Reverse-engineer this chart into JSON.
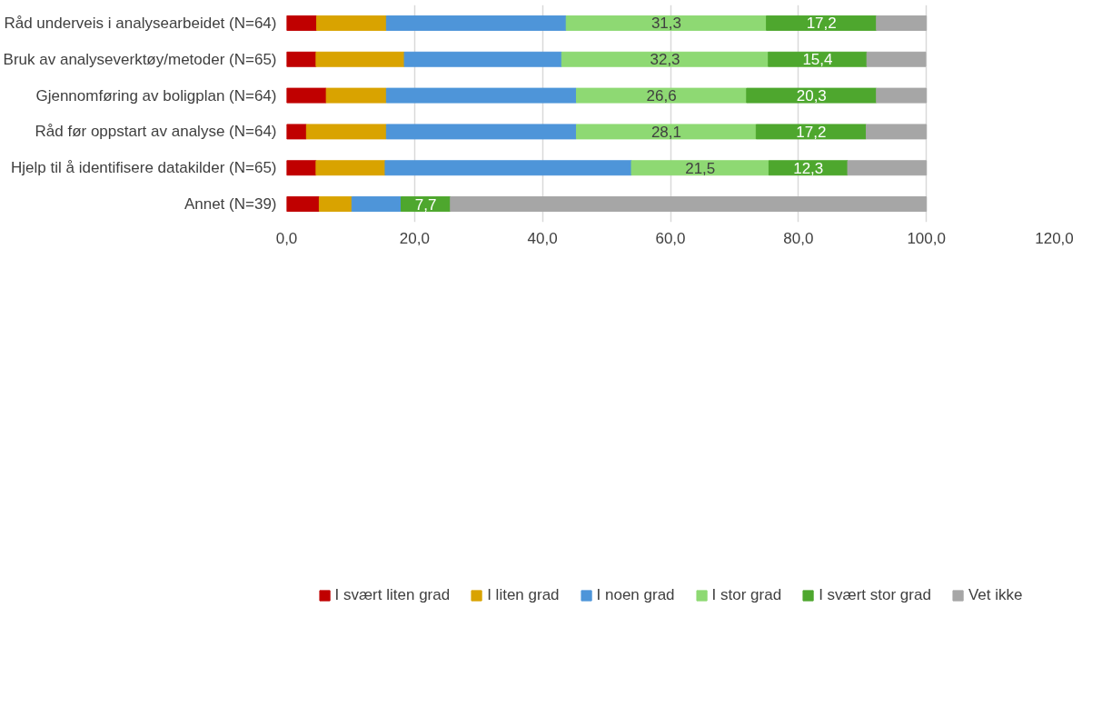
{
  "chart_data": {
    "type": "bar",
    "orientation": "horizontal",
    "stacked": true,
    "categories": [
      "Råd underveis i analysearbeidet (N=64)",
      "Bruk av analyseverktøy/metoder (N=65)",
      "Gjennomføring av boligplan (N=64)",
      "Råd før oppstart av analyse (N=64)",
      "Hjelp til å identifisere datakilder (N=65)",
      "Annet (N=39)"
    ],
    "series": [
      {
        "name": "I svært liten grad",
        "color": "#c00000",
        "values": [
          4.7,
          4.6,
          6.2,
          3.1,
          4.6,
          5.1
        ]
      },
      {
        "name": "I liten grad",
        "color": "#d9a300",
        "values": [
          10.9,
          13.8,
          9.4,
          12.5,
          10.8,
          5.1
        ]
      },
      {
        "name": "I noen grad",
        "color": "#4e95d9",
        "values": [
          28.1,
          24.6,
          29.7,
          29.7,
          38.5,
          7.7
        ]
      },
      {
        "name": "I stor grad",
        "color": "#8ed973",
        "values": [
          31.3,
          32.3,
          26.6,
          28.1,
          21.5,
          0
        ],
        "value_labels": [
          "31,3",
          "32,3",
          "26,6",
          "28,1",
          "21,5",
          null
        ]
      },
      {
        "name": "I svært stor grad",
        "color": "#4ea72e",
        "values": [
          17.2,
          15.4,
          20.3,
          17.2,
          12.3,
          7.7
        ],
        "value_labels": [
          "17,2",
          "15,4",
          "20,3",
          "17,2",
          "12,3",
          "7,7"
        ]
      },
      {
        "name": "Vet ikke",
        "color": "#a6a6a6",
        "values": [
          7.8,
          9.2,
          7.8,
          9.4,
          12.3,
          74.4
        ]
      }
    ],
    "xlim": [
      0,
      120
    ],
    "xticks": [
      {
        "value": 0,
        "label": "0,0"
      },
      {
        "value": 20,
        "label": "20,0"
      },
      {
        "value": 40,
        "label": "40,0"
      },
      {
        "value": 60,
        "label": "60,0"
      },
      {
        "value": 80,
        "label": "80,0"
      },
      {
        "value": 100,
        "label": "100,0"
      },
      {
        "value": 120,
        "label": "120,0"
      }
    ],
    "grid": "x",
    "legend": "bottom"
  }
}
